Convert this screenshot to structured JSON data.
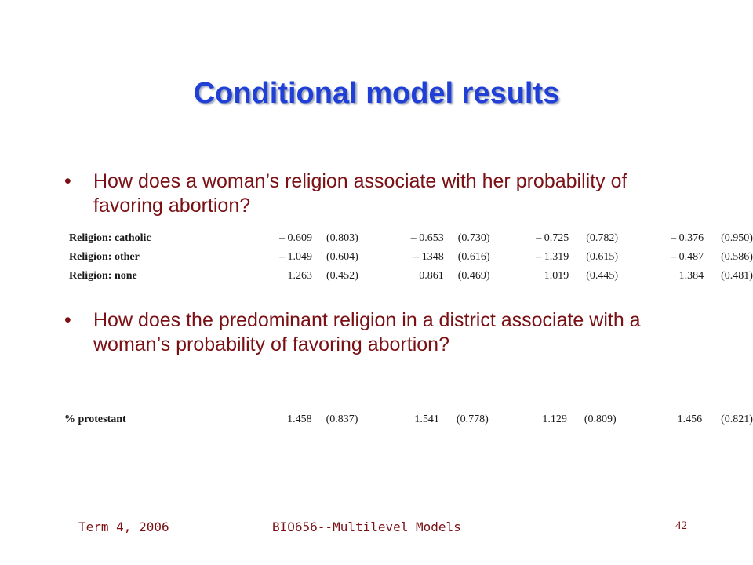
{
  "slide": {
    "title": "Conditional model results",
    "bullets": [
      "How does a woman’s religion associate with her probability of favoring abortion?",
      "How does the predominant religion in a district associate with a woman’s probability of favoring abortion?"
    ],
    "bullet_marker": "•"
  },
  "table1": {
    "rows": [
      {
        "label": "Religion: catholic",
        "vals": [
          "– 0.609",
          "(0.803)",
          "– 0.653",
          "(0.730)",
          "– 0.725",
          "(0.782)",
          "– 0.376",
          "(0.950)"
        ]
      },
      {
        "label": "Religion: other",
        "vals": [
          "– 1.049",
          "(0.604)",
          "– 1348",
          "(0.616)",
          "– 1.319",
          "(0.615)",
          "– 0.487",
          "(0.586)"
        ]
      },
      {
        "label": "Religion: none",
        "vals": [
          "1.263",
          "(0.452)",
          "0.861",
          "(0.469)",
          "1.019",
          "(0.445)",
          "1.384",
          "(0.481)"
        ]
      }
    ]
  },
  "table2": {
    "rows": [
      {
        "label": "% protestant",
        "vals": [
          "1.458",
          "(0.837)",
          "1.541",
          "(0.778)",
          "1.129",
          "(0.809)",
          "1.456",
          "(0.821)"
        ]
      }
    ]
  },
  "footer": {
    "left": "Term 4, 2006",
    "center": "BIO656--Multilevel Models",
    "page": "42"
  }
}
